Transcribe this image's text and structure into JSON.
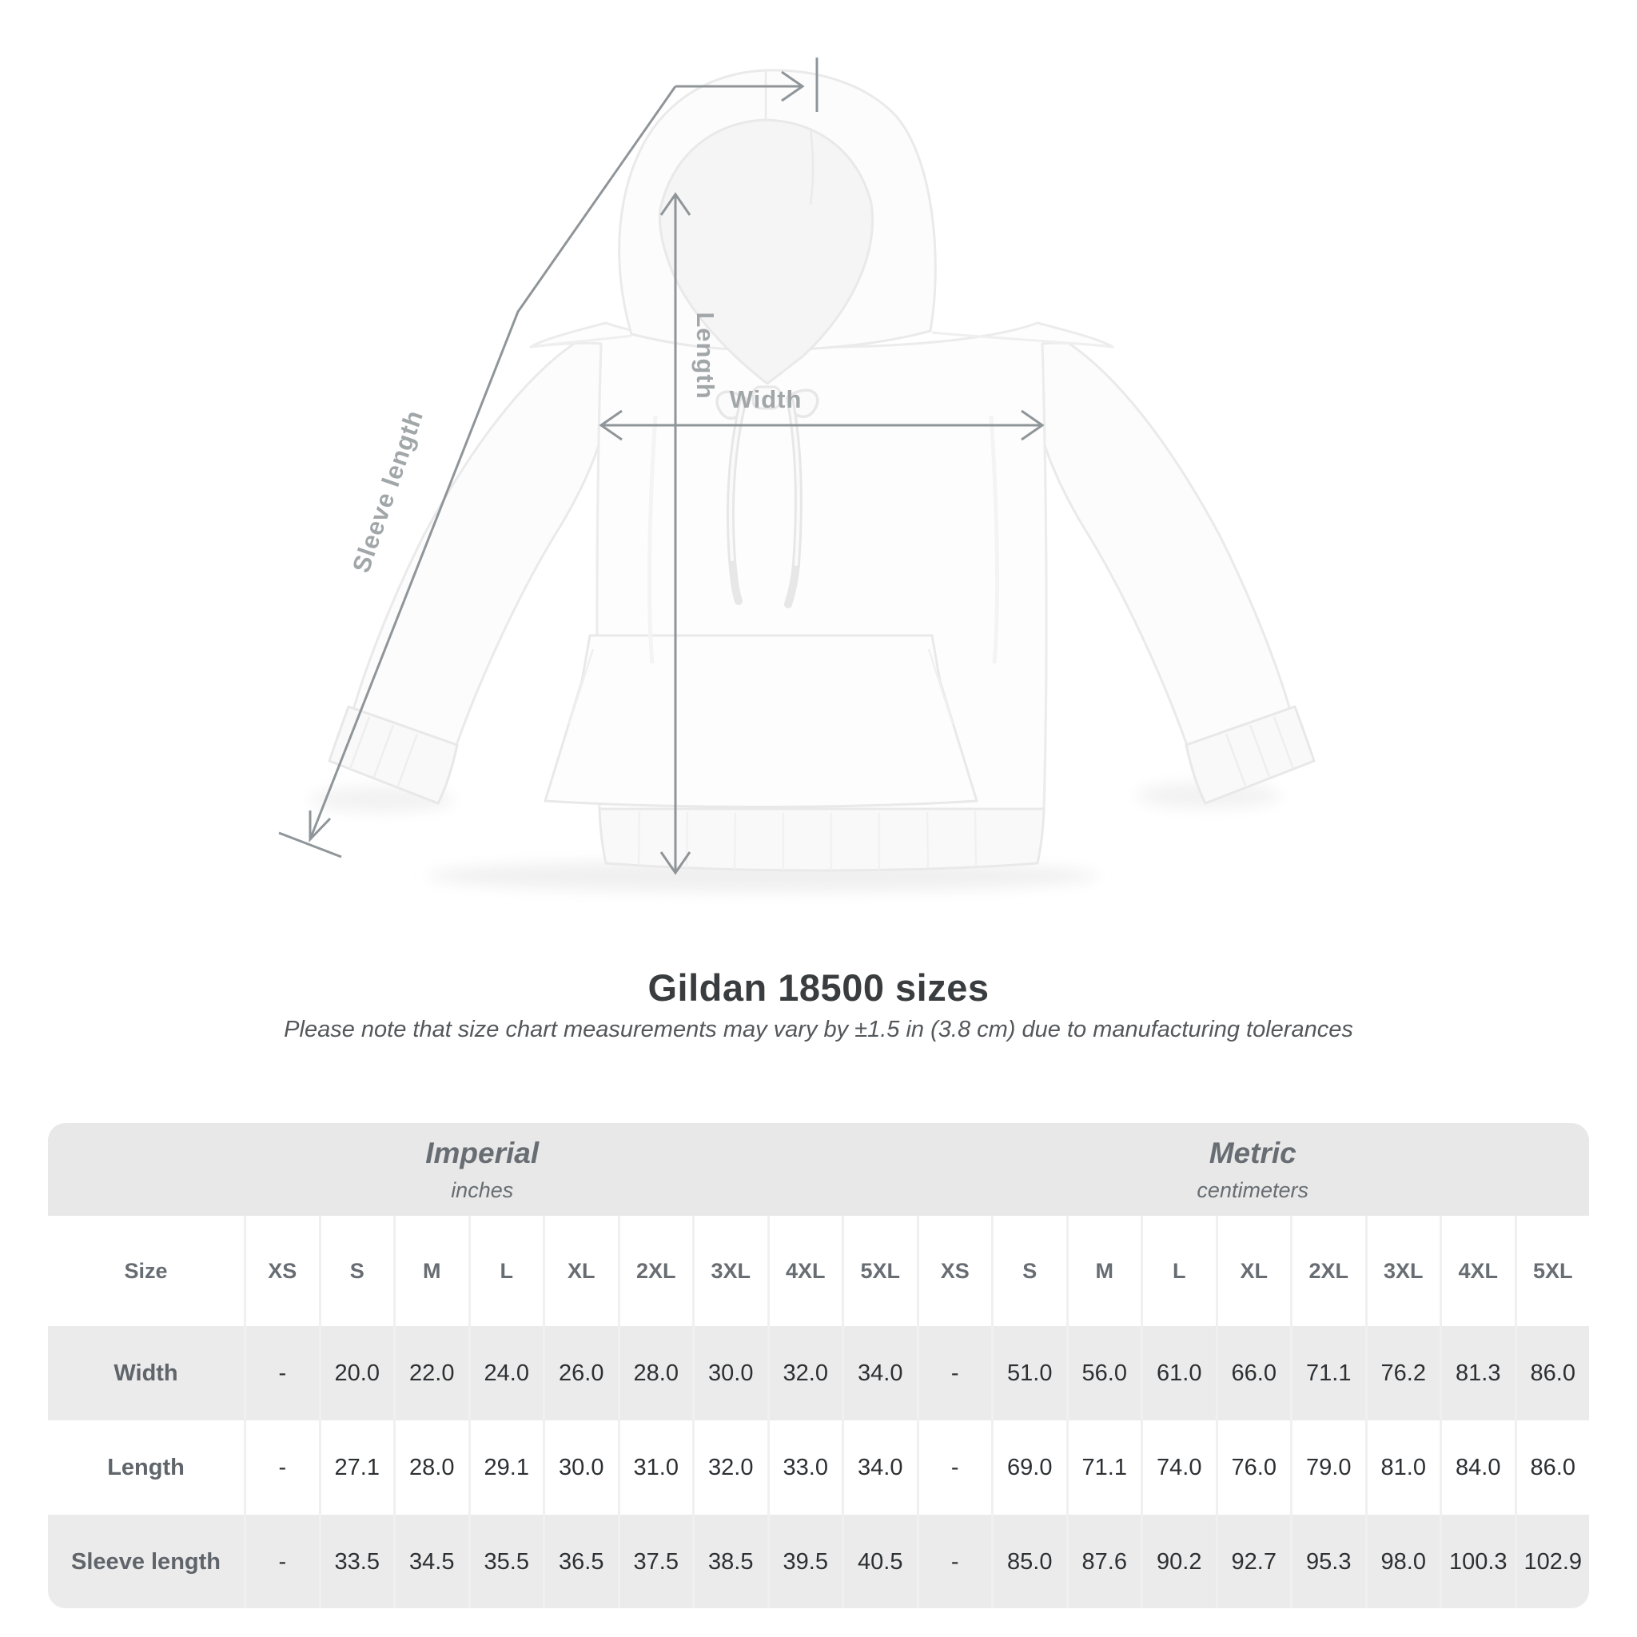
{
  "figure": {
    "labels": {
      "length": "Length",
      "width": "Width",
      "sleeve": "Sleeve length"
    }
  },
  "title": "Gildan 18500 sizes",
  "subtitle": "Please note that size chart measurements may vary by ±1.5 in (3.8 cm) due to manufacturing tolerances",
  "chart_data": {
    "type": "table",
    "title": "Gildan 18500 sizes",
    "note": "Please note that size chart measurements may vary by ±1.5 in (3.8 cm) due to manufacturing tolerances",
    "size_column_header": "Size",
    "sizes": [
      "XS",
      "S",
      "M",
      "L",
      "XL",
      "2XL",
      "3XL",
      "4XL",
      "5XL"
    ],
    "groups": [
      {
        "label": "Imperial",
        "unit": "inches"
      },
      {
        "label": "Metric",
        "unit": "centimeters"
      }
    ],
    "rows": [
      {
        "label": "Width",
        "imperial": [
          "-",
          "20.0",
          "22.0",
          "24.0",
          "26.0",
          "28.0",
          "30.0",
          "32.0",
          "34.0"
        ],
        "metric": [
          "-",
          "51.0",
          "56.0",
          "61.0",
          "66.0",
          "71.1",
          "76.2",
          "81.3",
          "86.0"
        ]
      },
      {
        "label": "Length",
        "imperial": [
          "-",
          "27.1",
          "28.0",
          "29.1",
          "30.0",
          "31.0",
          "32.0",
          "33.0",
          "34.0"
        ],
        "metric": [
          "-",
          "69.0",
          "71.1",
          "74.0",
          "76.0",
          "79.0",
          "81.0",
          "84.0",
          "86.0"
        ]
      },
      {
        "label": "Sleeve length",
        "imperial": [
          "-",
          "33.5",
          "34.5",
          "35.5",
          "36.5",
          "37.5",
          "38.5",
          "39.5",
          "40.5"
        ],
        "metric": [
          "-",
          "85.0",
          "87.6",
          "90.2",
          "92.7",
          "95.3",
          "98.0",
          "100.3",
          "102.9"
        ]
      }
    ]
  }
}
